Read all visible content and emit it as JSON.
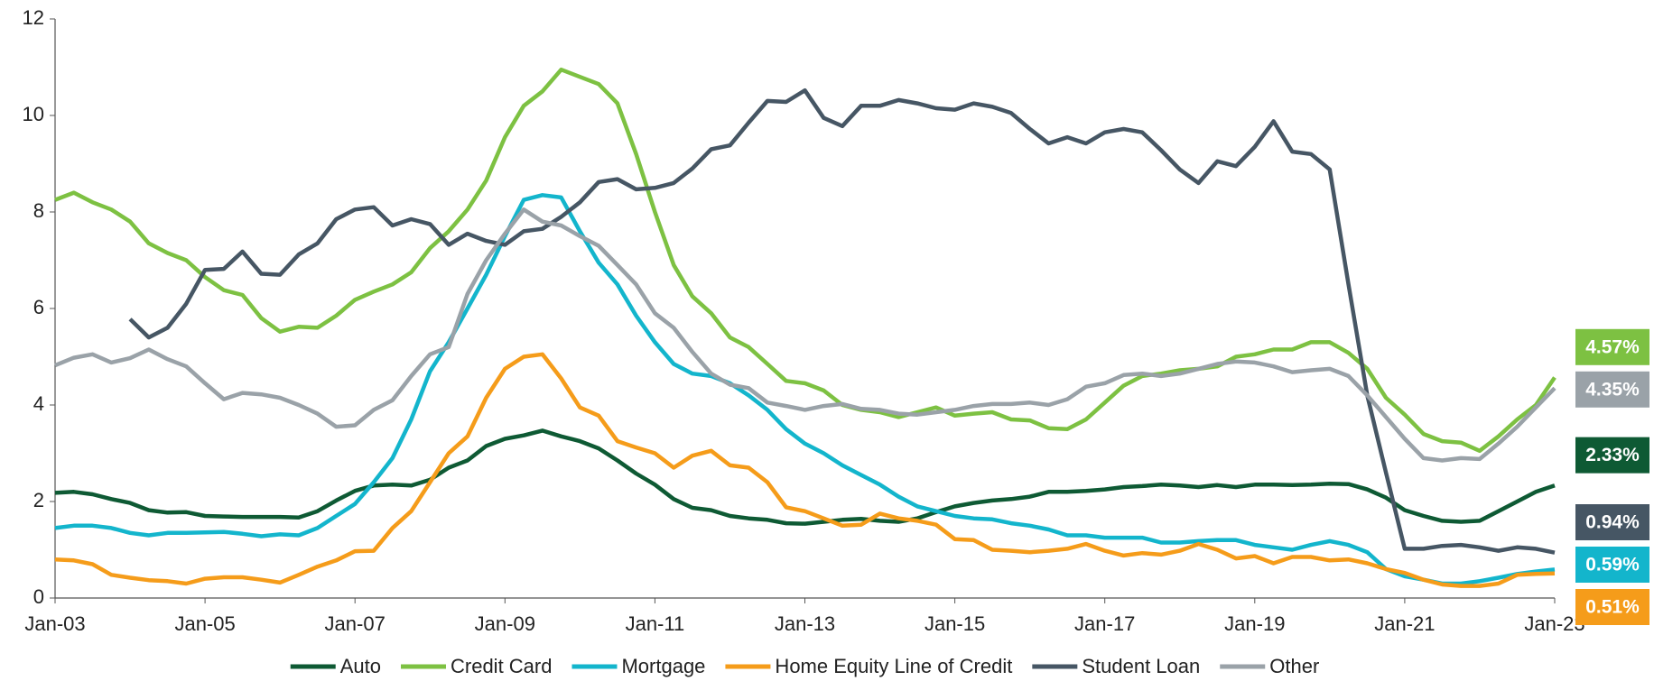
{
  "chart_data": {
    "type": "line",
    "categories": [
      "Jan-03",
      null,
      null,
      null,
      null,
      null,
      null,
      null,
      "Jan-05",
      null,
      null,
      null,
      null,
      null,
      null,
      null,
      "Jan-07",
      null,
      null,
      null,
      null,
      null,
      null,
      null,
      "Jan-09",
      null,
      null,
      null,
      null,
      null,
      null,
      null,
      "Jan-11",
      null,
      null,
      null,
      null,
      null,
      null,
      null,
      "Jan-13",
      null,
      null,
      null,
      null,
      null,
      null,
      null,
      "Jan-15",
      null,
      null,
      null,
      null,
      null,
      null,
      null,
      "Jan-17",
      null,
      null,
      null,
      null,
      null,
      null,
      null,
      "Jan-19",
      null,
      null,
      null,
      null,
      null,
      null,
      null,
      "Jan-21",
      null,
      null,
      null,
      null,
      null,
      null,
      null,
      "Jan-23"
    ],
    "ylim": [
      0,
      12
    ],
    "yticks": [
      0,
      2,
      4,
      6,
      8,
      10,
      12
    ],
    "legend": "bottom",
    "series": [
      {
        "name": "Auto",
        "color": "#0e5a34",
        "values": [
          2.18,
          2.2,
          2.15,
          2.05,
          1.97,
          1.82,
          1.77,
          1.78,
          1.7,
          1.69,
          1.68,
          1.68,
          1.68,
          1.67,
          1.8,
          2.02,
          2.22,
          2.33,
          2.35,
          2.33,
          2.45,
          2.7,
          2.85,
          3.15,
          3.3,
          3.37,
          3.47,
          3.35,
          3.25,
          3.1,
          2.85,
          2.58,
          2.35,
          2.05,
          1.87,
          1.82,
          1.7,
          1.65,
          1.62,
          1.55,
          1.54,
          1.58,
          1.62,
          1.64,
          1.6,
          1.58,
          1.65,
          1.78,
          1.9,
          1.97,
          2.02,
          2.05,
          2.1,
          2.2,
          2.2,
          2.22,
          2.25,
          2.3,
          2.32,
          2.35,
          2.33,
          2.3,
          2.34,
          2.3,
          2.35,
          2.35,
          2.34,
          2.35,
          2.37,
          2.36,
          2.25,
          2.08,
          1.82,
          1.7,
          1.6,
          1.58,
          1.6,
          1.8,
          2.0,
          2.2,
          2.33
        ],
        "value_labels": {
          "80": "2.33%"
        }
      },
      {
        "name": "Credit Card",
        "color": "#7dc142",
        "values": [
          8.25,
          8.4,
          8.2,
          8.05,
          7.8,
          7.35,
          7.15,
          7.0,
          6.65,
          6.38,
          6.28,
          5.8,
          5.52,
          5.62,
          5.6,
          5.85,
          6.18,
          6.35,
          6.5,
          6.75,
          7.25,
          7.6,
          8.05,
          8.65,
          9.55,
          10.2,
          10.5,
          10.95,
          10.8,
          10.65,
          10.25,
          9.2,
          8.0,
          6.9,
          6.25,
          5.9,
          5.4,
          5.2,
          4.85,
          4.5,
          4.45,
          4.3,
          4.0,
          3.9,
          3.85,
          3.75,
          3.85,
          3.95,
          3.78,
          3.82,
          3.85,
          3.7,
          3.68,
          3.52,
          3.5,
          3.7,
          4.05,
          4.4,
          4.6,
          4.65,
          4.72,
          4.75,
          4.8,
          5.0,
          5.05,
          5.15,
          5.15,
          5.3,
          5.3,
          5.08,
          4.75,
          4.15,
          3.8,
          3.4,
          3.25,
          3.22,
          3.05,
          3.35,
          3.7,
          4.0,
          4.57
        ],
        "value_labels": {
          "80": "4.57%"
        }
      },
      {
        "name": "Mortgage",
        "color": "#13b5cc",
        "values": [
          1.45,
          1.5,
          1.5,
          1.45,
          1.35,
          1.3,
          1.35,
          1.35,
          1.36,
          1.37,
          1.33,
          1.28,
          1.32,
          1.3,
          1.45,
          1.7,
          1.95,
          2.4,
          2.9,
          3.7,
          4.7,
          5.3,
          6.0,
          6.7,
          7.5,
          8.25,
          8.35,
          8.3,
          7.6,
          6.95,
          6.5,
          5.85,
          5.3,
          4.85,
          4.65,
          4.6,
          4.45,
          4.2,
          3.9,
          3.5,
          3.2,
          3.0,
          2.75,
          2.55,
          2.35,
          2.1,
          1.9,
          1.8,
          1.7,
          1.65,
          1.63,
          1.55,
          1.5,
          1.42,
          1.3,
          1.3,
          1.25,
          1.25,
          1.25,
          1.15,
          1.15,
          1.18,
          1.2,
          1.2,
          1.1,
          1.05,
          1.0,
          1.1,
          1.18,
          1.1,
          0.95,
          0.6,
          0.45,
          0.38,
          0.3,
          0.3,
          0.35,
          0.42,
          0.5,
          0.55,
          0.59
        ],
        "value_labels": {
          "80": "0.59%"
        }
      },
      {
        "name": "Home Equity Line of Credit",
        "color": "#f59c1a",
        "values": [
          0.8,
          0.78,
          0.7,
          0.48,
          0.42,
          0.37,
          0.35,
          0.3,
          0.4,
          0.43,
          0.43,
          0.38,
          0.32,
          0.48,
          0.65,
          0.78,
          0.97,
          0.98,
          1.45,
          1.8,
          2.4,
          3.0,
          3.35,
          4.15,
          4.75,
          5.0,
          5.05,
          4.55,
          3.95,
          3.78,
          3.25,
          3.12,
          3.0,
          2.7,
          2.95,
          3.05,
          2.75,
          2.7,
          2.4,
          1.88,
          1.8,
          1.65,
          1.5,
          1.52,
          1.75,
          1.65,
          1.6,
          1.52,
          1.22,
          1.2,
          1.0,
          0.98,
          0.95,
          0.98,
          1.02,
          1.12,
          0.98,
          0.88,
          0.93,
          0.9,
          0.98,
          1.12,
          1.0,
          0.82,
          0.87,
          0.72,
          0.85,
          0.85,
          0.78,
          0.8,
          0.72,
          0.6,
          0.52,
          0.38,
          0.28,
          0.25,
          0.25,
          0.3,
          0.48,
          0.5,
          0.51
        ],
        "value_labels": {
          "80": "0.51%"
        }
      },
      {
        "name": "Student Loan",
        "color": "#465664",
        "values": [
          null,
          null,
          null,
          null,
          5.78,
          5.4,
          5.6,
          6.1,
          6.8,
          6.82,
          7.18,
          6.72,
          6.7,
          7.12,
          7.35,
          7.85,
          8.05,
          8.1,
          7.72,
          7.85,
          7.75,
          7.32,
          7.55,
          7.4,
          7.32,
          7.6,
          7.65,
          7.9,
          8.2,
          8.62,
          8.68,
          8.47,
          8.5,
          8.6,
          8.9,
          9.3,
          9.38,
          9.85,
          10.3,
          10.28,
          10.52,
          9.95,
          9.78,
          10.2,
          10.2,
          10.32,
          10.25,
          10.15,
          10.12,
          10.25,
          10.18,
          10.05,
          9.72,
          9.42,
          9.55,
          9.42,
          9.65,
          9.72,
          9.65,
          9.28,
          8.88,
          8.6,
          9.05,
          8.95,
          9.35,
          9.88,
          9.25,
          9.2,
          8.88,
          6.5,
          4.2,
          2.6,
          1.02,
          1.02,
          1.08,
          1.1,
          1.05,
          0.98,
          1.05,
          1.02,
          0.94
        ],
        "value_labels": {
          "80": "0.94%"
        }
      },
      {
        "name": "Other",
        "color": "#9aa2a8",
        "values": [
          4.82,
          4.98,
          5.05,
          4.88,
          4.97,
          5.15,
          4.95,
          4.8,
          4.45,
          4.12,
          4.25,
          4.22,
          4.15,
          4.0,
          3.82,
          3.55,
          3.58,
          3.9,
          4.1,
          4.6,
          5.05,
          5.2,
          6.3,
          7.0,
          7.55,
          8.05,
          7.8,
          7.72,
          7.5,
          7.3,
          6.9,
          6.5,
          5.9,
          5.6,
          5.1,
          4.65,
          4.42,
          4.35,
          4.05,
          3.98,
          3.9,
          3.98,
          4.02,
          3.92,
          3.9,
          3.82,
          3.8,
          3.85,
          3.9,
          3.98,
          4.02,
          4.02,
          4.05,
          4.0,
          4.12,
          4.38,
          4.45,
          4.62,
          4.65,
          4.6,
          4.65,
          4.75,
          4.85,
          4.9,
          4.88,
          4.8,
          4.68,
          4.72,
          4.75,
          4.6,
          4.2,
          3.75,
          3.3,
          2.9,
          2.85,
          2.9,
          2.88,
          3.2,
          3.55,
          3.95,
          4.35
        ],
        "value_labels": {
          "80": "4.35%"
        }
      }
    ]
  }
}
